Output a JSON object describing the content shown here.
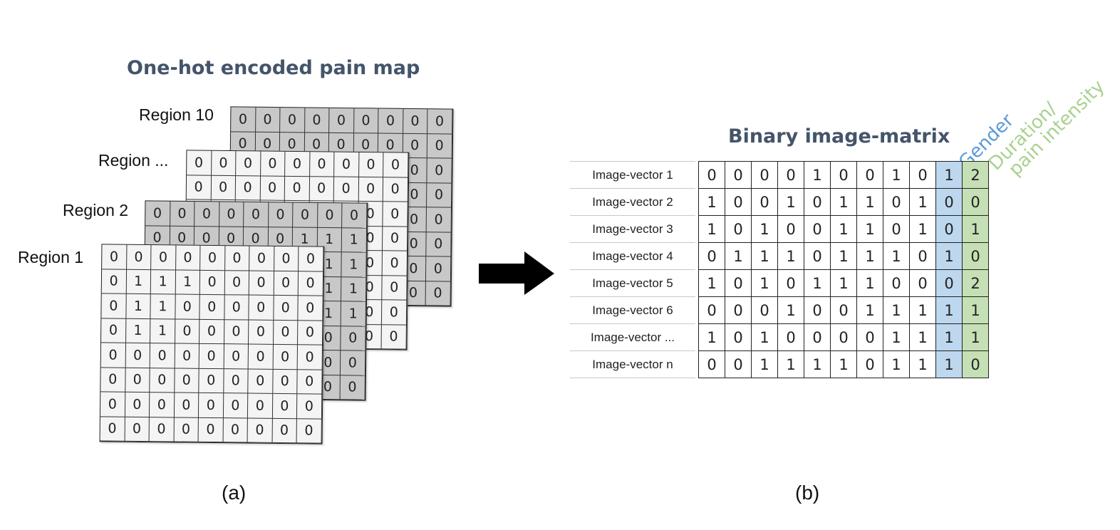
{
  "panel_a": {
    "title": "One-hot encoded pain map",
    "caption": "(a)",
    "regions": [
      {
        "label": "Region  10",
        "shade": "gray",
        "rows": [
          [
            "0",
            "0",
            "0",
            "0",
            "0",
            "0",
            "0",
            "0",
            "0"
          ],
          [
            "0",
            "0",
            "0",
            "0",
            "0",
            "0",
            "0",
            "0",
            "0"
          ],
          [
            "0",
            "0",
            "0",
            "0",
            "0",
            "0",
            "0",
            "0",
            "0"
          ],
          [
            "0",
            "0",
            "0",
            "0",
            "0",
            "0",
            "0",
            "0",
            "0"
          ],
          [
            "0",
            "0",
            "0",
            "0",
            "0",
            "0",
            "0",
            "0",
            "0"
          ],
          [
            "0",
            "0",
            "0",
            "0",
            "0",
            "0",
            "0",
            "0",
            "0"
          ],
          [
            "0",
            "0",
            "0",
            "0",
            "0",
            "0",
            "0",
            "0",
            "0"
          ],
          [
            "0",
            "0",
            "0",
            "0",
            "0",
            "0",
            "0",
            "0",
            "0"
          ]
        ]
      },
      {
        "label": "Region ...",
        "shade": "white",
        "rows": [
          [
            "0",
            "0",
            "0",
            "0",
            "0",
            "0",
            "0",
            "0",
            "0"
          ],
          [
            "0",
            "0",
            "0",
            "0",
            "0",
            "0",
            "0",
            "0",
            "0"
          ],
          [
            "0",
            "0",
            "0",
            "0",
            "0",
            "0",
            "0",
            "0",
            "0"
          ],
          [
            "0",
            "0",
            "0",
            "0",
            "0",
            "0",
            "0",
            "0",
            "0"
          ],
          [
            "0",
            "0",
            "0",
            "0",
            "0",
            "0",
            "0",
            "0",
            "0"
          ],
          [
            "0",
            "0",
            "0",
            "0",
            "0",
            "0",
            "0",
            "0",
            "0"
          ],
          [
            "0",
            "0",
            "0",
            "0",
            "0",
            "0",
            "0",
            "0",
            "0"
          ],
          [
            "0",
            "0",
            "0",
            "0",
            "0",
            "0",
            "0",
            "0",
            "0"
          ]
        ]
      },
      {
        "label": "Region 2",
        "shade": "gray",
        "rows": [
          [
            "0",
            "0",
            "0",
            "0",
            "0",
            "0",
            "0",
            "0",
            "0"
          ],
          [
            "0",
            "0",
            "0",
            "0",
            "0",
            "0",
            "1",
            "1",
            "1"
          ],
          [
            "0",
            "0",
            "0",
            "0",
            "0",
            "0",
            "0",
            "1",
            "1"
          ],
          [
            "0",
            "0",
            "0",
            "0",
            "0",
            "0",
            "0",
            "1",
            "1"
          ],
          [
            "0",
            "0",
            "0",
            "0",
            "0",
            "0",
            "0",
            "1",
            "1"
          ],
          [
            "0",
            "0",
            "0",
            "0",
            "0",
            "0",
            "0",
            "0",
            "0"
          ],
          [
            "0",
            "0",
            "0",
            "0",
            "0",
            "0",
            "0",
            "0",
            "0"
          ],
          [
            "0",
            "0",
            "0",
            "0",
            "0",
            "0",
            "0",
            "0",
            "0"
          ]
        ]
      },
      {
        "label": "Region 1",
        "shade": "white",
        "rows": [
          [
            "0",
            "0",
            "0",
            "0",
            "0",
            "0",
            "0",
            "0",
            "0"
          ],
          [
            "0",
            "1",
            "1",
            "1",
            "0",
            "0",
            "0",
            "0",
            "0"
          ],
          [
            "0",
            "1",
            "1",
            "0",
            "0",
            "0",
            "0",
            "0",
            "0"
          ],
          [
            "0",
            "1",
            "1",
            "0",
            "0",
            "0",
            "0",
            "0",
            "0"
          ],
          [
            "0",
            "0",
            "0",
            "0",
            "0",
            "0",
            "0",
            "0",
            "0"
          ],
          [
            "0",
            "0",
            "0",
            "0",
            "0",
            "0",
            "0",
            "0",
            "0"
          ],
          [
            "0",
            "0",
            "0",
            "0",
            "0",
            "0",
            "0",
            "0",
            "0"
          ],
          [
            "0",
            "0",
            "0",
            "0",
            "0",
            "0",
            "0",
            "0",
            "0"
          ]
        ]
      }
    ]
  },
  "arrow": {
    "color": "#000000"
  },
  "panel_b": {
    "title": "Binary image-matrix",
    "caption": "(b)",
    "gender_label": "Gender",
    "gender_color": "#5b9bd5",
    "duration_label_line1": "Duration/",
    "duration_label_line2": "pain intensity",
    "duration_color": "#a9d18e",
    "gender_fill": "#bdd7ee",
    "duration_fill": "#c5e0b4",
    "rows": [
      {
        "label": "Image-vector 1",
        "bits": [
          "0",
          "0",
          "0",
          "0",
          "1",
          "0",
          "0",
          "1",
          "0"
        ],
        "gender": "1",
        "duration": "2"
      },
      {
        "label": "Image-vector 2",
        "bits": [
          "1",
          "0",
          "0",
          "1",
          "0",
          "1",
          "1",
          "0",
          "1"
        ],
        "gender": "0",
        "duration": "0"
      },
      {
        "label": "Image-vector 3",
        "bits": [
          "1",
          "0",
          "1",
          "0",
          "0",
          "1",
          "1",
          "0",
          "1"
        ],
        "gender": "0",
        "duration": "1"
      },
      {
        "label": "Image-vector 4",
        "bits": [
          "0",
          "1",
          "1",
          "1",
          "0",
          "1",
          "1",
          "1",
          "0"
        ],
        "gender": "1",
        "duration": "0"
      },
      {
        "label": "Image-vector 5",
        "bits": [
          "1",
          "0",
          "1",
          "0",
          "1",
          "1",
          "1",
          "0",
          "0"
        ],
        "gender": "0",
        "duration": "2"
      },
      {
        "label": "Image-vector 6",
        "bits": [
          "0",
          "0",
          "0",
          "1",
          "0",
          "0",
          "1",
          "1",
          "1"
        ],
        "gender": "1",
        "duration": "1"
      },
      {
        "label": "Image-vector ...",
        "bits": [
          "1",
          "0",
          "1",
          "0",
          "0",
          "0",
          "0",
          "1",
          "1"
        ],
        "gender": "1",
        "duration": "1"
      },
      {
        "label": "Image-vector n",
        "bits": [
          "0",
          "0",
          "1",
          "1",
          "1",
          "1",
          "0",
          "1",
          "1"
        ],
        "gender": "1",
        "duration": "0"
      }
    ]
  }
}
